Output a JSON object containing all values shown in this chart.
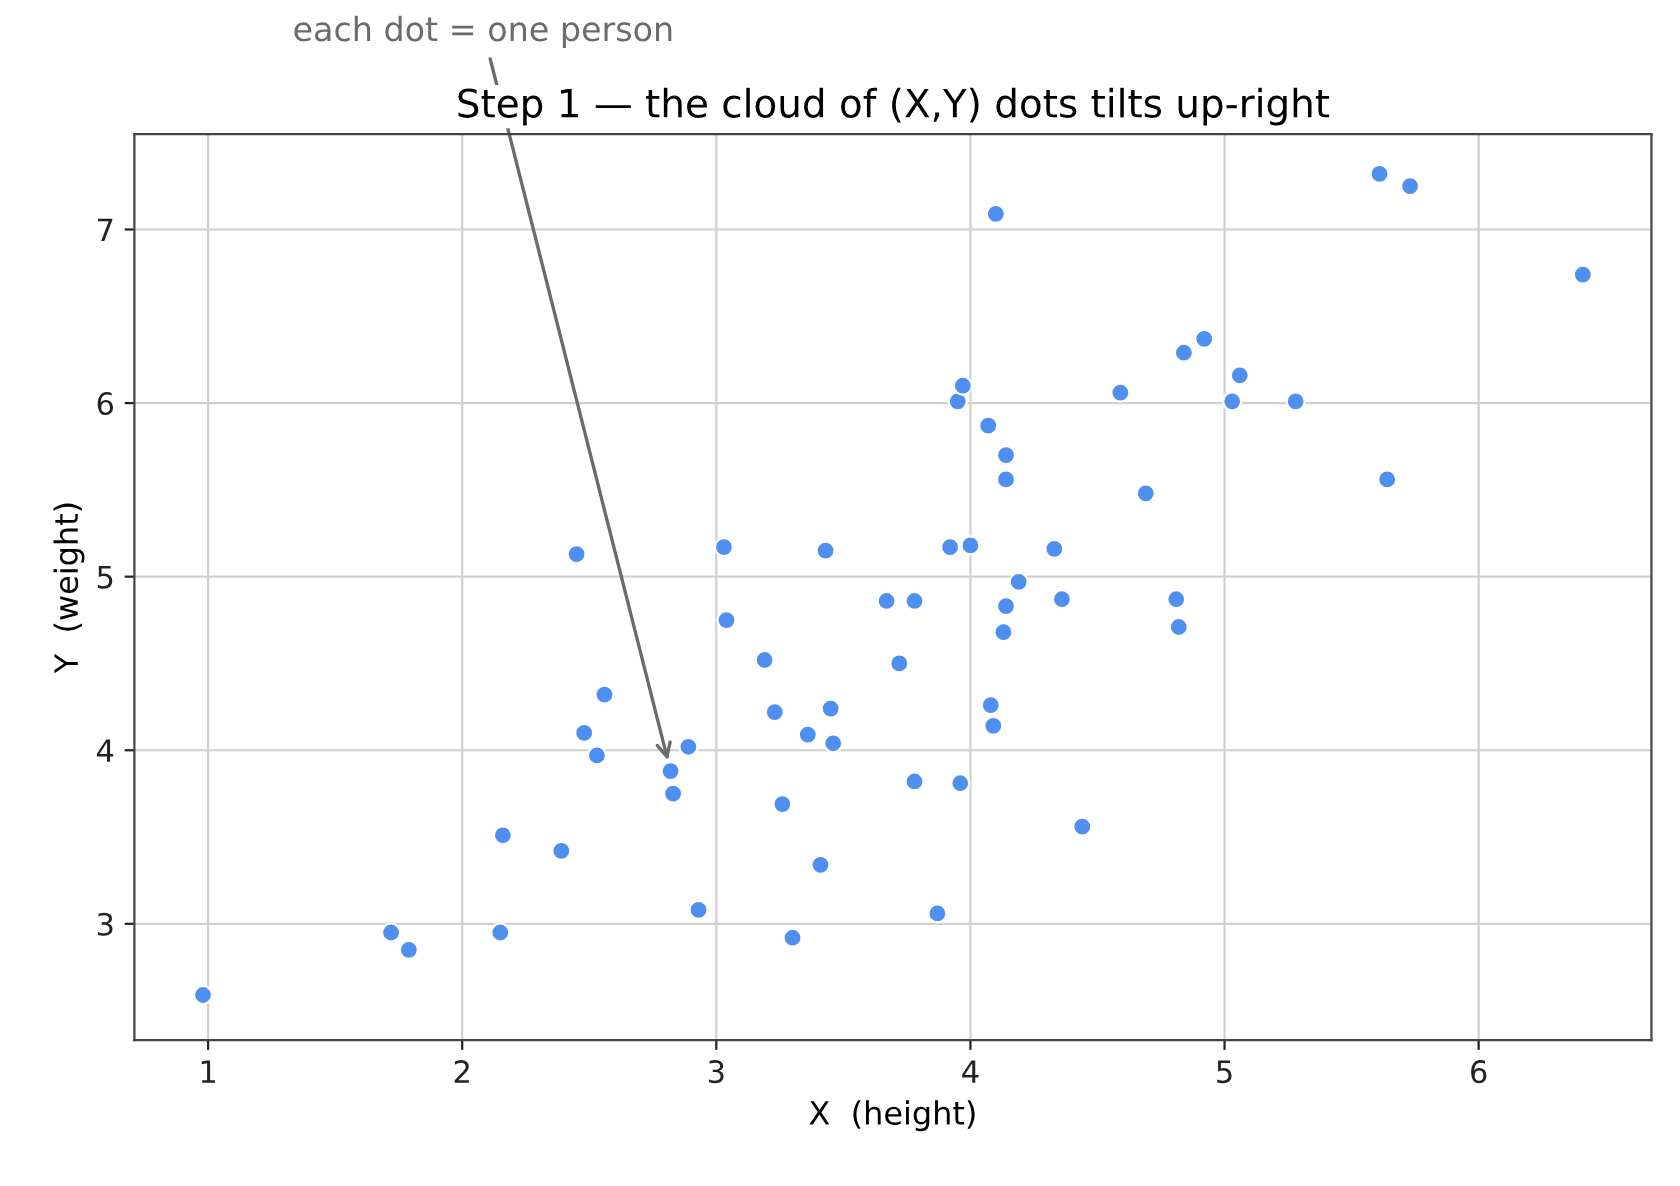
{
  "chart_data": {
    "type": "scatter",
    "title": "Step 1 — the cloud of (X,Y) dots tilts up-right",
    "xlabel": "X  (height)",
    "ylabel": "Y  (weight)",
    "xlim": [
      0.71,
      6.68
    ],
    "ylim": [
      2.33,
      7.55
    ],
    "xticks": [
      1,
      2,
      3,
      4,
      5,
      6
    ],
    "yticks": [
      3,
      4,
      5,
      6,
      7
    ],
    "grid": true,
    "marker": "circle",
    "annotations": [
      {
        "text": "each dot = one person",
        "x": 2.82,
        "y": 3.88
      }
    ],
    "series": [
      {
        "color": "#4f8ff0",
        "x": [
          0.98,
          1.72,
          1.79,
          2.15,
          2.16,
          2.39,
          2.45,
          2.48,
          2.53,
          2.56,
          2.82,
          2.83,
          2.89,
          2.93,
          3.03,
          3.04,
          3.19,
          3.23,
          3.26,
          3.3,
          3.36,
          3.41,
          3.43,
          3.45,
          3.46,
          3.67,
          3.72,
          3.78,
          3.78,
          3.87,
          3.92,
          3.95,
          3.97,
          3.96,
          4.0,
          4.07,
          4.08,
          4.09,
          4.1,
          4.14,
          4.14,
          4.14,
          4.13,
          4.19,
          4.33,
          4.36,
          4.44,
          4.59,
          4.69,
          4.81,
          4.82,
          4.84,
          4.92,
          5.03,
          5.06,
          5.28,
          5.61,
          5.73,
          5.64,
          6.41
        ],
        "values": [
          2.59,
          2.95,
          2.85,
          2.95,
          3.51,
          3.42,
          5.13,
          4.1,
          3.97,
          4.32,
          3.88,
          3.75,
          4.02,
          3.08,
          5.17,
          4.75,
          4.52,
          4.22,
          3.69,
          2.92,
          4.09,
          3.34,
          5.15,
          4.24,
          4.04,
          4.86,
          4.5,
          4.86,
          3.82,
          3.06,
          5.17,
          6.01,
          6.1,
          3.81,
          5.18,
          5.87,
          4.26,
          4.14,
          7.09,
          5.7,
          5.56,
          4.83,
          4.68,
          4.97,
          5.16,
          4.87,
          3.56,
          6.06,
          5.48,
          4.87,
          4.71,
          6.29,
          6.37,
          6.01,
          6.16,
          6.01,
          7.32,
          7.25,
          5.56,
          6.74
        ]
      }
    ]
  }
}
